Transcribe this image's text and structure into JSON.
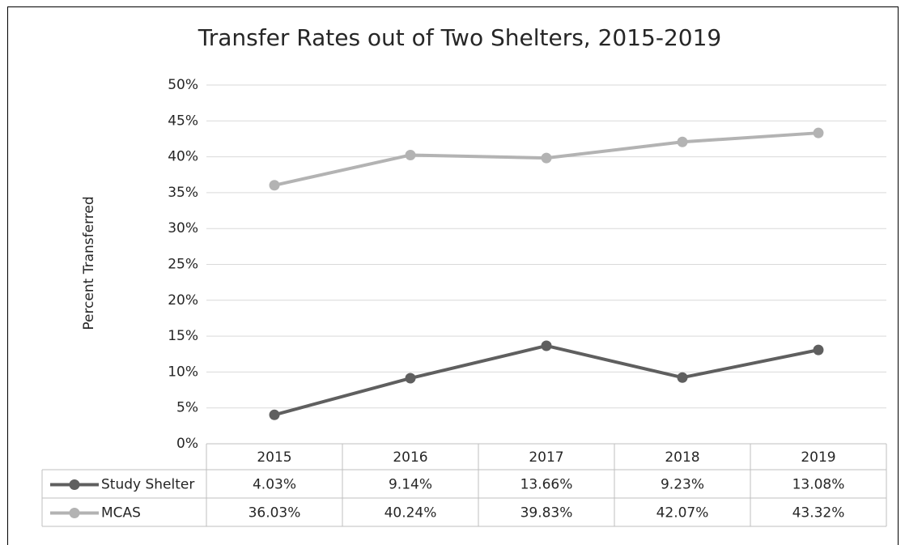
{
  "chart_data": {
    "type": "line",
    "title": "Transfer Rates out of Two Shelters, 2015-2019",
    "y_label": "Percent Transferred",
    "categories": [
      "2015",
      "2016",
      "2017",
      "2018",
      "2019"
    ],
    "series": [
      {
        "name": "Study Shelter",
        "color": "#5f5f5f",
        "values": [
          4.03,
          9.14,
          13.66,
          9.23,
          13.08
        ],
        "value_labels": [
          "4.03%",
          "9.14%",
          "13.66%",
          "9.23%",
          "13.08%"
        ]
      },
      {
        "name": "MCAS",
        "color": "#b3b3b3",
        "values": [
          36.03,
          40.24,
          39.83,
          42.07,
          43.32
        ],
        "value_labels": [
          "36.03%",
          "40.24%",
          "39.83%",
          "42.07%",
          "43.32%"
        ]
      }
    ],
    "ylim": [
      0,
      50
    ],
    "yticks": [
      {
        "value": 0,
        "label": "0%"
      },
      {
        "value": 5,
        "label": "5%"
      },
      {
        "value": 10,
        "label": "10%"
      },
      {
        "value": 15,
        "label": "15%"
      },
      {
        "value": 20,
        "label": "20%"
      },
      {
        "value": 25,
        "label": "25%"
      },
      {
        "value": 30,
        "label": "30%"
      },
      {
        "value": 35,
        "label": "35%"
      },
      {
        "value": 40,
        "label": "40%"
      },
      {
        "value": 45,
        "label": "45%"
      },
      {
        "value": 50,
        "label": "50%"
      }
    ],
    "grid": true,
    "data_table": true
  }
}
